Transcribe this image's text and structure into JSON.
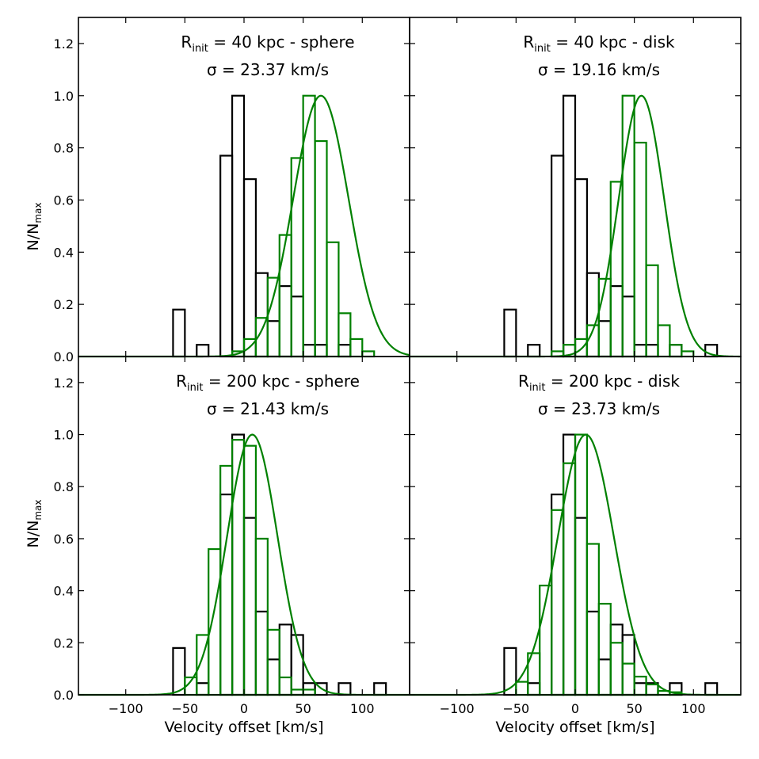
{
  "colors": {
    "black": "#000000",
    "green": "#008000"
  },
  "shared": {
    "ylabel": "N/N",
    "ylabel_sub": "max",
    "xlabel": "Velocity offset [km/s]",
    "xlim": [
      -140,
      140
    ],
    "ylim": [
      0,
      1.3
    ],
    "xticks": [
      -100,
      -50,
      0,
      50,
      100
    ],
    "xtick_labels": [
      "−100",
      "−50",
      "0",
      "50",
      "100"
    ],
    "yticks": [
      0.0,
      0.2,
      0.4,
      0.6,
      0.8,
      1.0,
      1.2
    ],
    "ytick_labels": [
      "0.0",
      "0.2",
      "0.4",
      "0.6",
      "0.8",
      "1.0",
      "1.2"
    ]
  },
  "chart_data": [
    {
      "type": "histogram",
      "panel": "top-left",
      "title_main": "R",
      "title_sub": "init",
      "title_rest": " = 40 kpc - sphere",
      "sigma_label": "σ = 23.37 km/s",
      "sigma": 23.37,
      "black_series": {
        "bin_edges": [
          -60,
          -50,
          -40,
          -30,
          -20,
          -10,
          0,
          10,
          20,
          30,
          40,
          50,
          60,
          70,
          80,
          90,
          100,
          110,
          120
        ],
        "values": [
          0.18,
          0,
          0.045,
          0,
          0.77,
          1.0,
          0.68,
          0.32,
          0.136,
          0.27,
          0.23,
          0.045,
          0.045,
          0,
          0.045,
          0,
          0,
          0
        ]
      },
      "green_series": {
        "bin_edges": [
          -10,
          0,
          10,
          20,
          30,
          40,
          50,
          60,
          70,
          80,
          90,
          100,
          110,
          120
        ],
        "values": [
          0.02,
          0.067,
          0.148,
          0.302,
          0.466,
          0.761,
          1.0,
          0.826,
          0.438,
          0.166,
          0.067,
          0.02,
          0
        ]
      },
      "gaussian_fit": {
        "mean": 65,
        "sigma": 23.37,
        "amplitude": 1.0
      }
    },
    {
      "type": "histogram",
      "panel": "top-right",
      "title_main": "R",
      "title_sub": "init",
      "title_rest": " = 40 kpc - disk",
      "sigma_label": "σ = 19.16 km/s",
      "sigma": 19.16,
      "black_series": {
        "bin_edges": [
          -60,
          -50,
          -40,
          -30,
          -20,
          -10,
          0,
          10,
          20,
          30,
          40,
          50,
          60,
          70,
          80,
          90,
          100,
          110,
          120
        ],
        "values": [
          0.18,
          0,
          0.045,
          0,
          0.77,
          1.0,
          0.68,
          0.32,
          0.136,
          0.27,
          0.23,
          0.045,
          0.045,
          0,
          0.045,
          0,
          0,
          0.045
        ]
      },
      "green_series": {
        "bin_edges": [
          -20,
          -10,
          0,
          10,
          20,
          30,
          40,
          50,
          60,
          70,
          80,
          90,
          100,
          110,
          120
        ],
        "values": [
          0.02,
          0.045,
          0.067,
          0.12,
          0.298,
          0.67,
          1.0,
          0.82,
          0.35,
          0.12,
          0.045,
          0.02,
          0,
          0
        ]
      },
      "gaussian_fit": {
        "mean": 56,
        "sigma": 19.16,
        "amplitude": 1.0
      }
    },
    {
      "type": "histogram",
      "panel": "bottom-left",
      "title_main": "R",
      "title_sub": "init",
      "title_rest": " = 200 kpc - sphere",
      "sigma_label": "σ = 21.43 km/s",
      "sigma": 21.43,
      "black_series": {
        "bin_edges": [
          -60,
          -50,
          -40,
          -30,
          -20,
          -10,
          0,
          10,
          20,
          30,
          40,
          50,
          60,
          70,
          80,
          90,
          100,
          110,
          120
        ],
        "values": [
          0.18,
          0,
          0.045,
          0,
          0.77,
          1.0,
          0.68,
          0.32,
          0.136,
          0.27,
          0.23,
          0.045,
          0.045,
          0,
          0.045,
          0,
          0,
          0.045
        ]
      },
      "green_series": {
        "bin_edges": [
          -50,
          -40,
          -30,
          -20,
          -10,
          0,
          10,
          20,
          30,
          40,
          50,
          60,
          70
        ],
        "values": [
          0.067,
          0.23,
          0.56,
          0.88,
          0.98,
          0.957,
          0.6,
          0.25,
          0.067,
          0.02,
          0.02,
          0
        ]
      },
      "gaussian_fit": {
        "mean": 7,
        "sigma": 21.43,
        "amplitude": 1.0
      }
    },
    {
      "type": "histogram",
      "panel": "bottom-right",
      "title_main": "R",
      "title_sub": "init",
      "title_rest": " = 200 kpc - disk",
      "sigma_label": "σ = 23.73 km/s",
      "sigma": 23.73,
      "black_series": {
        "bin_edges": [
          -60,
          -50,
          -40,
          -30,
          -20,
          -10,
          0,
          10,
          20,
          30,
          40,
          50,
          60,
          70,
          80,
          90,
          100,
          110,
          120
        ],
        "values": [
          0.18,
          0,
          0.045,
          0,
          0.77,
          1.0,
          0.68,
          0.32,
          0.136,
          0.27,
          0.23,
          0.045,
          0.045,
          0,
          0.045,
          0,
          0,
          0.045
        ]
      },
      "green_series": {
        "bin_edges": [
          -50,
          -40,
          -30,
          -20,
          -10,
          0,
          10,
          20,
          30,
          40,
          50,
          60,
          70,
          80,
          90,
          100
        ],
        "values": [
          0.05,
          0.16,
          0.42,
          0.71,
          0.89,
          1.0,
          0.58,
          0.35,
          0.2,
          0.12,
          0.07,
          0.04,
          0.015,
          0.01,
          0
        ]
      },
      "gaussian_fit": {
        "mean": 9,
        "sigma": 23.73,
        "amplitude": 1.0
      }
    }
  ]
}
